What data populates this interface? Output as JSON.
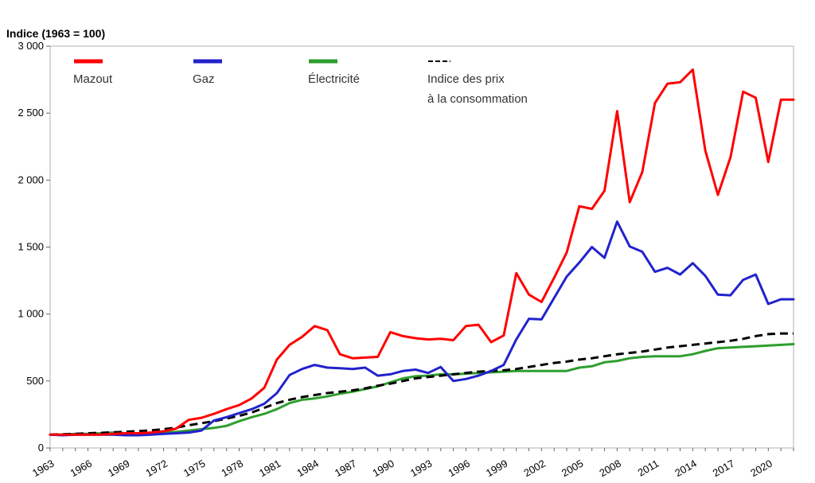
{
  "chart_data": {
    "type": "line",
    "ylabel": "Indice (1963 = 100)",
    "ylim": [
      0,
      3000
    ],
    "y_ticks": [
      0,
      500,
      1000,
      1500,
      2000,
      2500,
      3000
    ],
    "y_tick_labels": [
      "0",
      "500",
      "1 000",
      "1 500",
      "2 000",
      "2 500",
      "3 000"
    ],
    "x_range": [
      1963,
      2022
    ],
    "x_ticks": [
      1963,
      1966,
      1969,
      1972,
      1975,
      1978,
      1981,
      1984,
      1987,
      1990,
      1993,
      1996,
      1999,
      2002,
      2005,
      2008,
      2011,
      2014,
      2017,
      2020
    ],
    "x_tick_labels": [
      "1963",
      "1966",
      "1969",
      "1972",
      "1975",
      "1978",
      "1981",
      "1984",
      "1987",
      "1990",
      "1993",
      "1996",
      "1999",
      "2002",
      "2005",
      "2008",
      "2011",
      "2014",
      "2017",
      "2020"
    ],
    "grid": false,
    "legend_position": "top",
    "x": [
      1963,
      1964,
      1965,
      1966,
      1967,
      1968,
      1969,
      1970,
      1971,
      1972,
      1973,
      1974,
      1975,
      1976,
      1977,
      1978,
      1979,
      1980,
      1981,
      1982,
      1983,
      1984,
      1985,
      1986,
      1987,
      1988,
      1989,
      1990,
      1991,
      1992,
      1993,
      1994,
      1995,
      1996,
      1997,
      1998,
      1999,
      2000,
      2001,
      2002,
      2003,
      2004,
      2005,
      2006,
      2007,
      2008,
      2009,
      2010,
      2011,
      2012,
      2013,
      2014,
      2015,
      2016,
      2017,
      2018,
      2019,
      2020,
      2021,
      2022
    ],
    "series": [
      {
        "name": "Mazout",
        "color": "#ff0000",
        "style": "solid",
        "legend_label_lines": [
          "Mazout"
        ],
        "values": [
          100,
          100,
          100,
          100,
          100,
          105,
          110,
          110,
          115,
          125,
          145,
          210,
          225,
          255,
          290,
          320,
          370,
          450,
          660,
          770,
          830,
          910,
          880,
          700,
          670,
          675,
          680,
          865,
          835,
          820,
          810,
          815,
          805,
          910,
          920,
          790,
          840,
          1305,
          1145,
          1090,
          1270,
          1460,
          1805,
          1785,
          1920,
          2515,
          1835,
          2060,
          2575,
          2720,
          2730,
          2825,
          2220,
          1890,
          2170,
          2660,
          2615,
          2135,
          2600,
          2600
        ]
      },
      {
        "name": "Gaz",
        "color": "#2222cc",
        "style": "solid",
        "legend_label_lines": [
          "Gaz"
        ],
        "values": [
          100,
          95,
          100,
          100,
          100,
          100,
          95,
          95,
          100,
          105,
          110,
          115,
          130,
          205,
          230,
          260,
          290,
          330,
          410,
          545,
          590,
          620,
          600,
          595,
          590,
          600,
          540,
          550,
          575,
          585,
          560,
          605,
          500,
          515,
          540,
          575,
          620,
          810,
          965,
          960,
          1120,
          1280,
          1385,
          1500,
          1420,
          1690,
          1505,
          1465,
          1315,
          1345,
          1295,
          1380,
          1285,
          1145,
          1140,
          1255,
          1295,
          1075,
          1110,
          1110
        ]
      },
      {
        "name": "Électricité",
        "color": "#2e9e2e",
        "style": "solid",
        "legend_label_lines": [
          "Électricité"
        ],
        "values": [
          100,
          100,
          105,
          105,
          110,
          115,
          110,
          110,
          110,
          115,
          120,
          130,
          140,
          150,
          165,
          200,
          230,
          255,
          290,
          335,
          360,
          370,
          385,
          405,
          420,
          440,
          460,
          490,
          520,
          535,
          540,
          550,
          550,
          555,
          560,
          565,
          570,
          575,
          575,
          575,
          575,
          575,
          600,
          610,
          640,
          650,
          670,
          680,
          685,
          685,
          685,
          700,
          725,
          745,
          750,
          755,
          760,
          765,
          770,
          775
        ]
      },
      {
        "name": "Indice des prix à la consommation",
        "color": "#000000",
        "style": "dashed",
        "legend_label_lines": [
          "Indice des prix",
          "à la consommation"
        ],
        "values": [
          100,
          103,
          106,
          110,
          113,
          117,
          121,
          126,
          132,
          140,
          152,
          170,
          185,
          200,
          220,
          240,
          265,
          300,
          335,
          360,
          380,
          395,
          410,
          420,
          430,
          445,
          465,
          480,
          500,
          520,
          530,
          540,
          550,
          560,
          570,
          575,
          580,
          590,
          605,
          620,
          635,
          645,
          660,
          670,
          685,
          700,
          710,
          720,
          735,
          750,
          760,
          770,
          780,
          790,
          800,
          815,
          835,
          850,
          855,
          855
        ]
      }
    ]
  }
}
